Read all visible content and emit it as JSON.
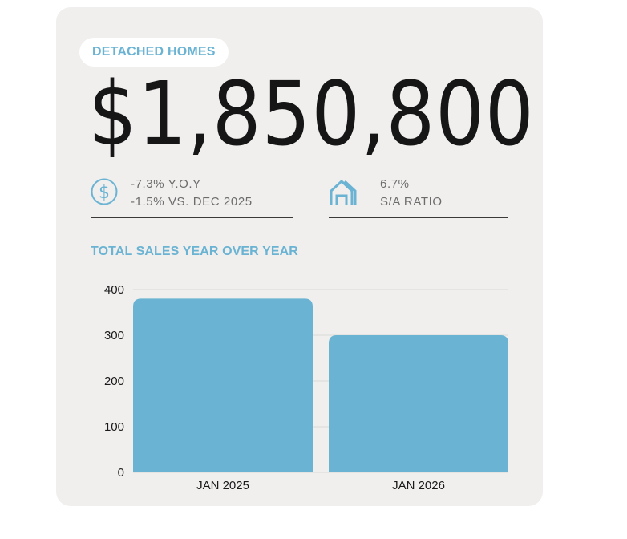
{
  "card": {
    "badge": "DETACHED HOMES",
    "price": "$1,850,800",
    "stats_left": {
      "line1": "-7.3% Y.O.Y",
      "line2": "-1.5% VS. DEC 2025"
    },
    "stats_right": {
      "line1": "6.7%",
      "line2": "S/A RATIO"
    },
    "chart_title": "TOTAL SALES YEAR OVER YEAR"
  },
  "colors": {
    "accent": "#6ab3d3",
    "card_bg": "#f0efee",
    "text_dark": "#161616"
  },
  "icons": {
    "left": "dollar-circle-icon",
    "right": "house-outline-icon"
  },
  "chart_data": {
    "type": "bar",
    "title": "TOTAL SALES YEAR OVER YEAR",
    "categories": [
      "JAN 2025",
      "JAN 2026"
    ],
    "values": [
      380,
      300
    ],
    "xlabel": "",
    "ylabel": "",
    "ylim": [
      0,
      400
    ],
    "yticks": [
      0,
      100,
      200,
      300,
      400
    ],
    "grid": true,
    "bar_color": "#6ab3d3"
  }
}
